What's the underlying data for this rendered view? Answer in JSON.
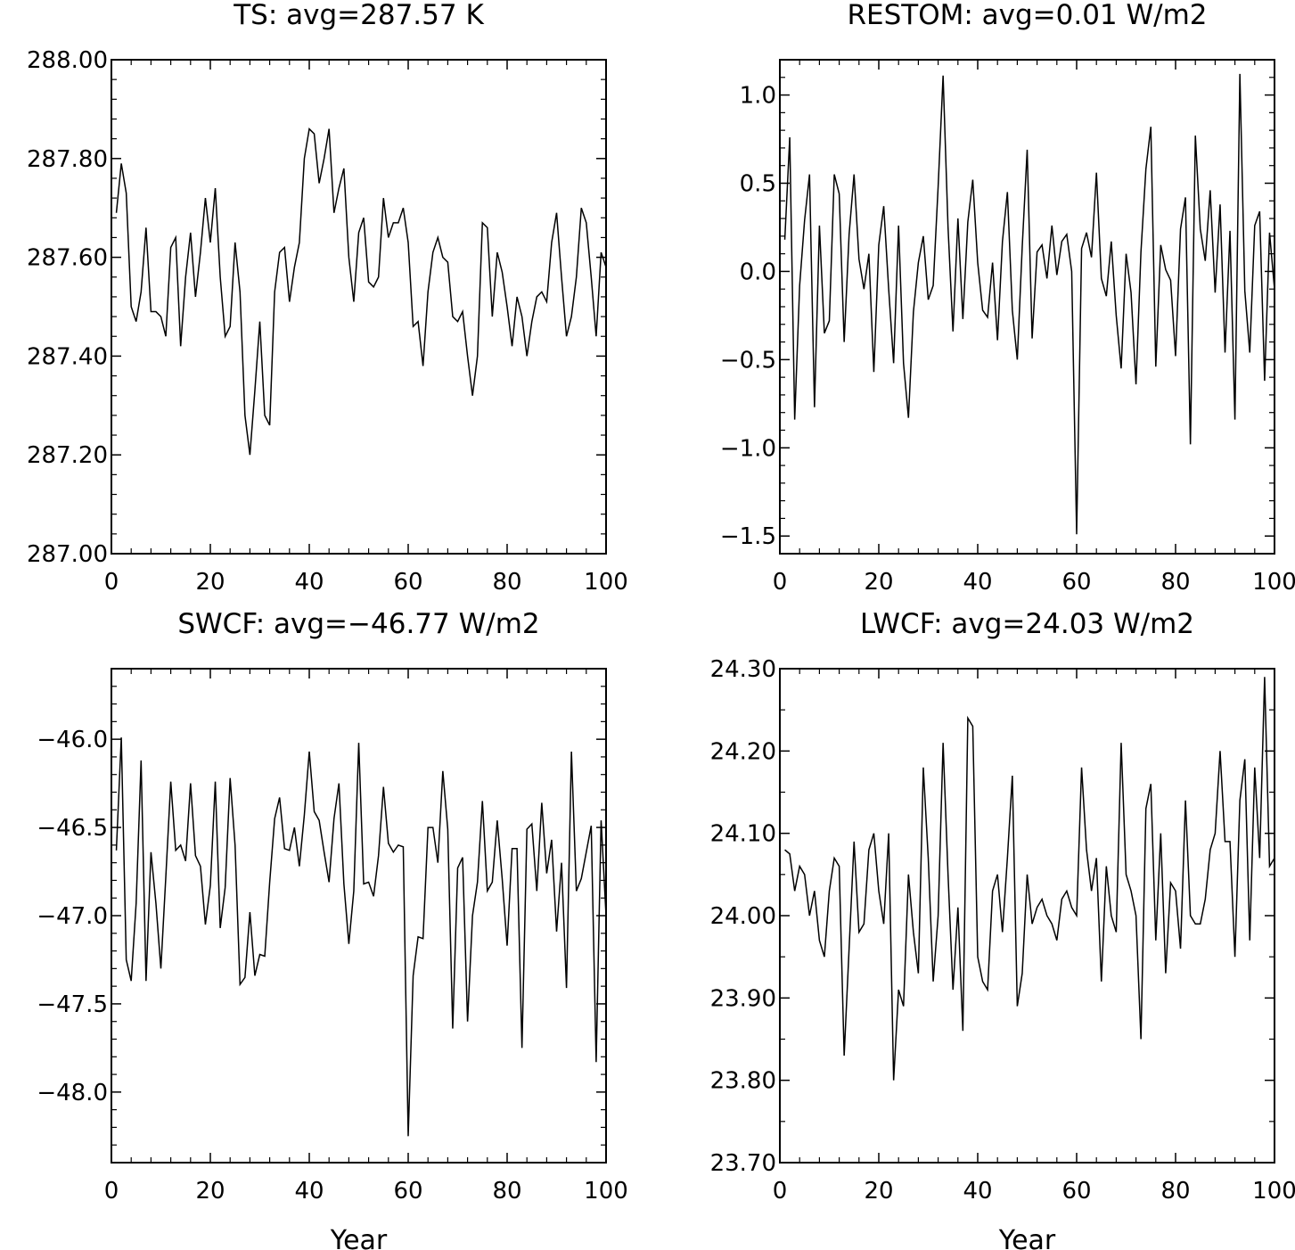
{
  "chart_data": [
    {
      "type": "line",
      "title": "TS: avg=287.57 K",
      "xlabel": "",
      "ylabel": "",
      "xlim": [
        0,
        100
      ],
      "ylim": [
        287.0,
        288.0
      ],
      "x_ticks": [
        "0",
        "20",
        "40",
        "60",
        "80",
        "100"
      ],
      "y_ticks": [
        "287.00",
        "287.20",
        "287.40",
        "287.60",
        "287.80",
        "288.00"
      ],
      "grid": false,
      "series": [
        {
          "values": [
            287.69,
            287.79,
            287.73,
            287.5,
            287.47,
            287.53,
            287.66,
            287.49,
            287.49,
            287.48,
            287.44,
            287.62,
            287.64,
            287.42,
            287.56,
            287.65,
            287.52,
            287.61,
            287.72,
            287.63,
            287.74,
            287.56,
            287.44,
            287.46,
            287.63,
            287.53,
            287.28,
            287.2,
            287.33,
            287.47,
            287.28,
            287.26,
            287.53,
            287.61,
            287.62,
            287.51,
            287.58,
            287.63,
            287.8,
            287.86,
            287.85,
            287.75,
            287.8,
            287.86,
            287.69,
            287.74,
            287.78,
            287.6,
            287.51,
            287.65,
            287.68,
            287.55,
            287.54,
            287.56,
            287.72,
            287.64,
            287.67,
            287.67,
            287.7,
            287.63,
            287.46,
            287.47,
            287.38,
            287.53,
            287.61,
            287.64,
            287.6,
            287.59,
            287.48,
            287.47,
            287.49,
            287.4,
            287.32,
            287.4,
            287.67,
            287.66,
            287.48,
            287.61,
            287.57,
            287.5,
            287.42,
            287.52,
            287.48,
            287.4,
            287.47,
            287.52,
            287.53,
            287.51,
            287.63,
            287.69,
            287.56,
            287.44,
            287.48,
            287.56,
            287.7,
            287.67,
            287.56,
            287.44,
            287.61,
            287.58
          ]
        }
      ]
    },
    {
      "type": "line",
      "title": "RESTOM: avg=0.01 W/m2",
      "xlabel": "",
      "ylabel": "",
      "xlim": [
        0,
        100
      ],
      "ylim": [
        -1.6,
        1.2
      ],
      "x_ticks": [
        "0",
        "20",
        "40",
        "60",
        "80",
        "100"
      ],
      "y_ticks": [
        "1.0",
        "0.5",
        "0.0",
        "−0.5",
        "−1.0",
        "−1.5"
      ],
      "grid": false,
      "series": [
        {
          "values": [
            0.18,
            0.76,
            -0.84,
            -0.08,
            0.29,
            0.55,
            -0.77,
            0.26,
            -0.35,
            -0.28,
            0.55,
            0.44,
            -0.4,
            0.21,
            0.55,
            0.07,
            -0.1,
            0.1,
            -0.57,
            0.15,
            0.37,
            -0.1,
            -0.52,
            0.26,
            -0.52,
            -0.83,
            -0.23,
            0.05,
            0.2,
            -0.16,
            -0.08,
            0.48,
            1.11,
            0.25,
            -0.34,
            0.3,
            -0.27,
            0.28,
            0.52,
            0.05,
            -0.22,
            -0.26,
            0.05,
            -0.39,
            0.17,
            0.45,
            -0.22,
            -0.5,
            0.14,
            0.69,
            -0.38,
            0.11,
            0.15,
            -0.04,
            0.26,
            -0.02,
            0.17,
            0.21,
            0.0,
            -1.49,
            0.13,
            0.22,
            0.08,
            0.56,
            -0.04,
            -0.14,
            0.17,
            -0.25,
            -0.55,
            0.1,
            -0.12,
            -0.64,
            0.11,
            0.58,
            0.82,
            -0.54,
            0.15,
            0.01,
            -0.05,
            -0.48,
            0.24,
            0.42,
            -0.98,
            0.77,
            0.24,
            0.06,
            0.46,
            -0.12,
            0.38,
            -0.46,
            0.23,
            -0.84,
            1.12,
            -0.11,
            -0.46,
            0.26,
            0.34,
            -0.62,
            0.22,
            -0.1
          ]
        }
      ]
    },
    {
      "type": "line",
      "title": "SWCF: avg=−46.77 W/m2",
      "xlabel": "Year",
      "ylabel": "",
      "xlim": [
        0,
        100
      ],
      "ylim": [
        -48.4,
        -45.6
      ],
      "x_ticks": [
        "0",
        "20",
        "40",
        "60",
        "80",
        "100"
      ],
      "y_ticks": [
        "−46.0",
        "−46.5",
        "−47.0",
        "−47.5",
        "−48.0"
      ],
      "grid": false,
      "series": [
        {
          "values": [
            -46.63,
            -45.99,
            -47.25,
            -47.37,
            -46.93,
            -46.12,
            -47.37,
            -46.64,
            -46.93,
            -47.3,
            -46.78,
            -46.24,
            -46.63,
            -46.6,
            -46.69,
            -46.25,
            -46.66,
            -46.72,
            -47.05,
            -46.83,
            -46.24,
            -47.07,
            -46.84,
            -46.22,
            -46.6,
            -47.39,
            -47.35,
            -46.98,
            -47.34,
            -47.22,
            -47.23,
            -46.81,
            -46.45,
            -46.33,
            -46.62,
            -46.63,
            -46.5,
            -46.72,
            -46.43,
            -46.07,
            -46.41,
            -46.46,
            -46.64,
            -46.81,
            -46.45,
            -46.25,
            -46.82,
            -47.16,
            -46.86,
            -46.02,
            -46.82,
            -46.81,
            -46.89,
            -46.66,
            -46.27,
            -46.59,
            -46.64,
            -46.6,
            -46.61,
            -48.25,
            -47.34,
            -47.12,
            -47.13,
            -46.5,
            -46.5,
            -46.7,
            -46.18,
            -46.51,
            -47.64,
            -46.73,
            -46.67,
            -47.6,
            -47.0,
            -46.81,
            -46.35,
            -46.86,
            -46.81,
            -46.46,
            -46.79,
            -47.17,
            -46.62,
            -46.62,
            -47.75,
            -46.51,
            -46.48,
            -46.86,
            -46.36,
            -46.76,
            -46.57,
            -47.09,
            -46.7,
            -47.41,
            -46.07,
            -46.86,
            -46.79,
            -46.64,
            -46.49,
            -47.83,
            -46.46,
            -47.0
          ]
        }
      ]
    },
    {
      "type": "line",
      "title": "LWCF: avg=24.03 W/m2",
      "xlabel": "Year",
      "ylabel": "",
      "xlim": [
        0,
        100
      ],
      "ylim": [
        23.7,
        24.3
      ],
      "x_ticks": [
        "0",
        "20",
        "40",
        "60",
        "80",
        "100"
      ],
      "y_ticks": [
        "24.30",
        "24.20",
        "24.10",
        "24.00",
        "23.90",
        "23.80",
        "23.70"
      ],
      "grid": false,
      "series": [
        {
          "values": [
            24.08,
            24.075,
            24.03,
            24.06,
            24.05,
            24.0,
            24.03,
            23.97,
            23.95,
            24.03,
            24.07,
            24.06,
            23.83,
            23.96,
            24.09,
            23.98,
            23.99,
            24.08,
            24.1,
            24.03,
            23.99,
            24.1,
            23.8,
            23.91,
            23.89,
            24.05,
            23.98,
            23.93,
            24.18,
            24.07,
            23.92,
            24.0,
            24.21,
            24.05,
            23.91,
            24.01,
            23.86,
            24.24,
            24.23,
            23.95,
            23.92,
            23.91,
            24.03,
            24.05,
            23.98,
            24.07,
            24.17,
            23.89,
            23.93,
            24.05,
            23.99,
            24.01,
            24.02,
            24.0,
            23.99,
            23.97,
            24.02,
            24.03,
            24.01,
            24.0,
            24.18,
            24.08,
            24.03,
            24.07,
            23.92,
            24.06,
            24.0,
            23.98,
            24.21,
            24.05,
            24.03,
            24.0,
            23.85,
            24.13,
            24.16,
            23.97,
            24.1,
            23.93,
            24.04,
            24.03,
            23.96,
            24.14,
            24.0,
            23.99,
            23.99,
            24.02,
            24.08,
            24.1,
            24.2,
            24.09,
            24.09,
            23.95,
            24.14,
            24.19,
            23.97,
            24.18,
            24.07,
            24.29,
            24.06,
            24.07
          ]
        }
      ]
    }
  ]
}
